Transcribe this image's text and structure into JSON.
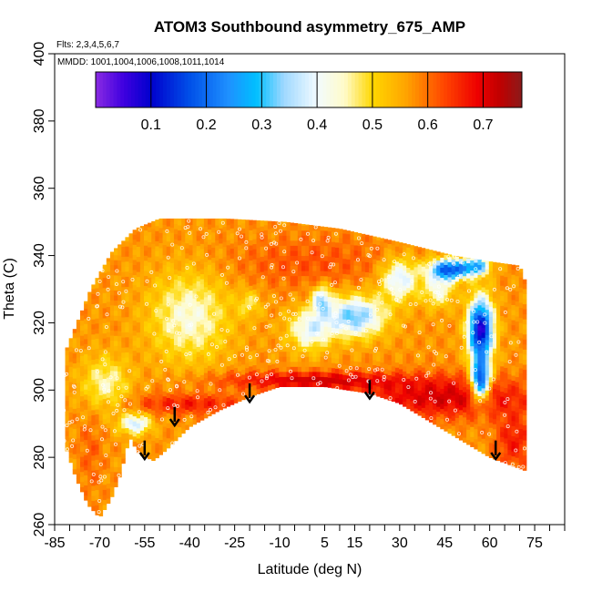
{
  "chart_data": {
    "type": "heatmap",
    "title": "ATOM3 Southbound asymmetry_675_AMP",
    "subtitle_flights": "Flts: 2,3,4,5,6,7",
    "subtitle_dates": "MMDD: 1001,1004,1006,1008,1011,1014",
    "xlabel": "Latitude (deg N)",
    "ylabel": "Theta (C)",
    "xlim": [
      -85,
      85
    ],
    "ylim": [
      260,
      400
    ],
    "x_ticks": [
      -85,
      -80,
      -75,
      -70,
      -65,
      -60,
      -55,
      -50,
      -45,
      -40,
      -35,
      -30,
      -25,
      -20,
      -15,
      -10,
      -5,
      0,
      5,
      10,
      15,
      20,
      25,
      30,
      35,
      40,
      45,
      50,
      55,
      60,
      65,
      70,
      75,
      80,
      85
    ],
    "x_tick_labels": [
      "-85",
      "-70",
      "-55",
      "-40",
      "-25",
      "-10",
      "5",
      "15",
      "30",
      "45",
      "60",
      "75"
    ],
    "x_tick_label_values": [
      -85,
      -70,
      -55,
      -40,
      -25,
      -10,
      5,
      15,
      30,
      45,
      60,
      75
    ],
    "y_ticks": [
      260,
      280,
      300,
      320,
      340,
      360,
      380,
      400
    ],
    "y_tick_labels": [
      "260",
      "280",
      "300",
      "320",
      "340",
      "360",
      "380",
      "400"
    ],
    "colorbar": {
      "range": [
        0.0,
        0.77
      ],
      "tick_values": [
        0.1,
        0.2,
        0.3,
        0.4,
        0.5,
        0.6,
        0.7
      ],
      "tick_labels": [
        "0.1",
        "0.2",
        "0.3",
        "0.4",
        "0.5",
        "0.6",
        "0.7"
      ],
      "color_stops": [
        {
          "v": 0.0,
          "c": "#8a2be2"
        },
        {
          "v": 0.05,
          "c": "#3f00e0"
        },
        {
          "v": 0.1,
          "c": "#0000cd"
        },
        {
          "v": 0.17,
          "c": "#0050e8"
        },
        {
          "v": 0.24,
          "c": "#1e90ff"
        },
        {
          "v": 0.29,
          "c": "#00bfff"
        },
        {
          "v": 0.34,
          "c": "#9fd8ff"
        },
        {
          "v": 0.4,
          "c": "#f2fbff"
        },
        {
          "v": 0.45,
          "c": "#fffbc8"
        },
        {
          "v": 0.5,
          "c": "#ffd700"
        },
        {
          "v": 0.56,
          "c": "#ffa500"
        },
        {
          "v": 0.63,
          "c": "#ff4500"
        },
        {
          "v": 0.69,
          "c": "#ee0000"
        },
        {
          "v": 0.73,
          "c": "#c00000"
        },
        {
          "v": 0.77,
          "c": "#8b1a1a"
        }
      ]
    },
    "tropopause_arrows": [
      {
        "lat": -55,
        "theta": 285
      },
      {
        "lat": -45,
        "theta": 295
      },
      {
        "lat": -20,
        "theta": 302
      },
      {
        "lat": 20,
        "theta": 303
      },
      {
        "lat": 62,
        "theta": 285
      }
    ],
    "field_outline": {
      "top": [
        {
          "lat": -83,
          "theta": 308
        },
        {
          "lat": -78,
          "theta": 319
        },
        {
          "lat": -73,
          "theta": 330
        },
        {
          "lat": -66,
          "theta": 341
        },
        {
          "lat": -58,
          "theta": 348
        },
        {
          "lat": -50,
          "theta": 351
        },
        {
          "lat": -28,
          "theta": 351
        },
        {
          "lat": -8,
          "theta": 350
        },
        {
          "lat": 10,
          "theta": 348
        },
        {
          "lat": 30,
          "theta": 344
        },
        {
          "lat": 48,
          "theta": 340
        },
        {
          "lat": 62,
          "theta": 338
        },
        {
          "lat": 70,
          "theta": 337
        },
        {
          "lat": 72,
          "theta": 332
        }
      ],
      "bottom": [
        {
          "lat": 73,
          "theta": 300
        },
        {
          "lat": 72,
          "theta": 276
        },
        {
          "lat": 60,
          "theta": 280
        },
        {
          "lat": 45,
          "theta": 288
        },
        {
          "lat": 30,
          "theta": 296
        },
        {
          "lat": 20,
          "theta": 299
        },
        {
          "lat": 5,
          "theta": 301
        },
        {
          "lat": -10,
          "theta": 301
        },
        {
          "lat": -20,
          "theta": 298
        },
        {
          "lat": -30,
          "theta": 294
        },
        {
          "lat": -40,
          "theta": 289
        },
        {
          "lat": -48,
          "theta": 282
        },
        {
          "lat": -52,
          "theta": 279
        },
        {
          "lat": -57,
          "theta": 281
        },
        {
          "lat": -60,
          "theta": 286
        },
        {
          "lat": -63,
          "theta": 275
        },
        {
          "lat": -66,
          "theta": 268
        },
        {
          "lat": -70,
          "theta": 262
        },
        {
          "lat": -74,
          "theta": 266
        },
        {
          "lat": -78,
          "theta": 274
        },
        {
          "lat": -82,
          "theta": 285
        }
      ]
    },
    "field_features": {
      "background_value": 0.57,
      "lobes": [
        {
          "lat": 57,
          "theta": 318,
          "slat": 4,
          "sth": 9,
          "amp": -0.5
        },
        {
          "lat": 57,
          "theta": 303,
          "slat": 3,
          "sth": 6,
          "amp": -0.42
        },
        {
          "lat": 47,
          "theta": 336,
          "slat": 7,
          "sth": 3,
          "amp": -0.4
        },
        {
          "lat": 56,
          "theta": 337,
          "slat": 4,
          "sth": 2.5,
          "amp": -0.25
        },
        {
          "lat": 43,
          "theta": 330,
          "slat": 5,
          "sth": 5,
          "amp": -0.15
        },
        {
          "lat": 15,
          "theta": 322,
          "slat": 10,
          "sth": 6,
          "amp": -0.25
        },
        {
          "lat": 30,
          "theta": 333,
          "slat": 6,
          "sth": 6,
          "amp": -0.2
        },
        {
          "lat": 0,
          "theta": 318,
          "slat": 7,
          "sth": 6,
          "amp": -0.17
        },
        {
          "lat": 4,
          "theta": 327,
          "slat": 3,
          "sth": 4,
          "amp": -0.2
        },
        {
          "lat": -40,
          "theta": 322,
          "slat": 13,
          "sth": 13,
          "amp": -0.14
        },
        {
          "lat": -20,
          "theta": 326,
          "slat": 4,
          "sth": 4,
          "amp": -0.08
        },
        {
          "lat": -68,
          "theta": 302,
          "slat": 8,
          "sth": 8,
          "amp": -0.12
        },
        {
          "lat": -58,
          "theta": 290,
          "slat": 5,
          "sth": 3,
          "amp": -0.2
        },
        {
          "lat": -73,
          "theta": 282,
          "slat": 4,
          "sth": 12,
          "amp": 0.04
        },
        {
          "lat": 0,
          "theta": 303,
          "slat": 30,
          "sth": 2.5,
          "amp": 0.14
        },
        {
          "lat": 45,
          "theta": 298,
          "slat": 30,
          "sth": 6,
          "amp": 0.14
        },
        {
          "lat": 68,
          "theta": 285,
          "slat": 6,
          "sth": 8,
          "amp": 0.1
        },
        {
          "lat": -40,
          "theta": 296,
          "slat": 20,
          "sth": 3,
          "amp": 0.1
        },
        {
          "lat": 0,
          "theta": 338,
          "slat": 28,
          "sth": 8,
          "amp": 0.05
        }
      ]
    }
  }
}
